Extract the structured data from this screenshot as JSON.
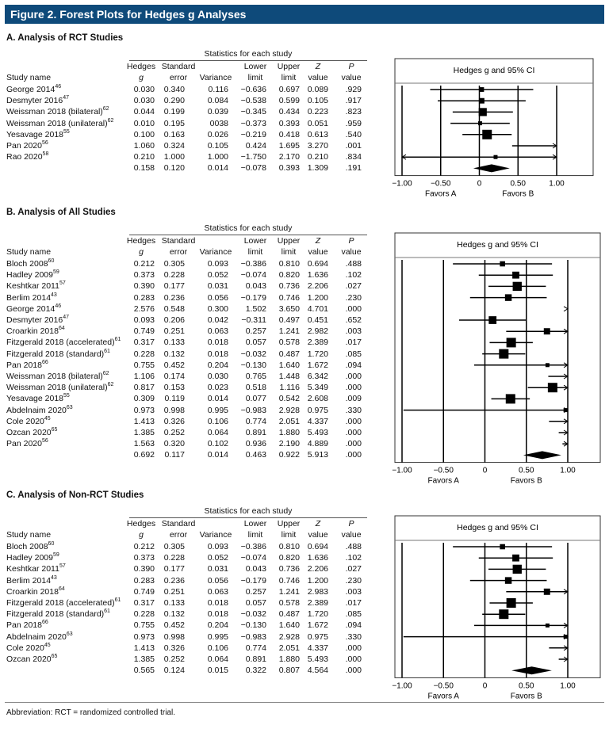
{
  "figure_title": "Figure 2. Forest Plots for Hedges g Analyses",
  "footnote": "Abbreviation: RCT = randomized controlled trial.",
  "columns": {
    "study": "Study name",
    "hedges": [
      "Hedges",
      "g"
    ],
    "se": [
      "Standard",
      "error"
    ],
    "variance": [
      "",
      "Variance"
    ],
    "lower": [
      "Lower",
      "limit"
    ],
    "upper": [
      "Upper",
      "limit"
    ],
    "z": [
      "Z",
      "value"
    ],
    "p": [
      "P",
      "value"
    ]
  },
  "stats_header": "Statistics for each study",
  "plot_title": "Hedges g and 95% CI",
  "axis": {
    "ticks": [
      "−1.00",
      "−0.50",
      "0",
      "0.50",
      "1.00"
    ],
    "tick_values": [
      -1,
      -0.5,
      0,
      0.5,
      1
    ],
    "xlim": [
      -1,
      1
    ],
    "left_label": "Favors A",
    "right_label": "Favors B"
  },
  "chart_data": [
    {
      "type": "forest",
      "title": "A. Analysis of RCT Studies",
      "rows": [
        {
          "study": "George 2014",
          "ref": "46",
          "g": "0.030",
          "se": "0.340",
          "var": "0.116",
          "lo": "−0.636",
          "hi": "0.697",
          "z": "0.089",
          "p": ".929"
        },
        {
          "study": "Desmyter 2016",
          "ref": "47",
          "g": "0.030",
          "se": "0.290",
          "var": "0.084",
          "lo": "−0.538",
          "hi": "0.599",
          "z": "0.105",
          "p": ".917"
        },
        {
          "study": "Weissman 2018 (bilateral)",
          "ref": "62",
          "g": "0.044",
          "se": "0.199",
          "var": "0.039",
          "lo": "−0.345",
          "hi": "0.434",
          "z": "0.223",
          "p": ".823"
        },
        {
          "study": "Weissman 2018 (unilateral)",
          "ref": "62",
          "g": "0.010",
          "se": "0.195",
          "var": "0038",
          "lo": "−0.373",
          "hi": "0.393",
          "z": "0.051",
          "p": ".959"
        },
        {
          "study": "Yesavage 2018",
          "ref": "55",
          "g": "0.100",
          "se": "0.163",
          "var": "0.026",
          "lo": "−0.219",
          "hi": "0.418",
          "z": "0.613",
          "p": ".540"
        },
        {
          "study": "Pan 2020",
          "ref": "56",
          "g": "1.060",
          "se": "0.324",
          "var": "0.105",
          "lo": "0.424",
          "hi": "1.695",
          "z": "3.270",
          "p": ".001"
        },
        {
          "study": "Rao 2020",
          "ref": "58",
          "g": "0.210",
          "se": "1.000",
          "var": "1.000",
          "lo": "−1.750",
          "hi": "2.170",
          "z": "0.210",
          "p": ".834"
        }
      ],
      "summary": {
        "g": "0.158",
        "se": "0.120",
        "var": "0.014",
        "lo": "−0.078",
        "hi": "0.393",
        "z": "1.309",
        "p": ".191"
      }
    },
    {
      "type": "forest",
      "title": "B. Analysis of All Studies",
      "rows": [
        {
          "study": "Bloch 2008",
          "ref": "60",
          "g": "0.212",
          "se": "0.305",
          "var": "0.093",
          "lo": "−0.386",
          "hi": "0.810",
          "z": "0.694",
          "p": ".488"
        },
        {
          "study": "Hadley 2009",
          "ref": "59",
          "g": "0.373",
          "se": "0.228",
          "var": "0.052",
          "lo": "−0.074",
          "hi": "0.820",
          "z": "1.636",
          "p": ".102"
        },
        {
          "study": "Keshtkar 2011",
          "ref": "57",
          "g": "0.390",
          "se": "0.177",
          "var": "0.031",
          "lo": "0.043",
          "hi": "0.736",
          "z": "2.206",
          "p": ".027"
        },
        {
          "study": "Berlim 2014",
          "ref": "43",
          "g": "0.283",
          "se": "0.236",
          "var": "0.056",
          "lo": "−0.179",
          "hi": "0.746",
          "z": "1.200",
          "p": ".230"
        },
        {
          "study": "George 2014",
          "ref": "46",
          "g": "2.576",
          "se": "0.548",
          "var": "0.300",
          "lo": "1.502",
          "hi": "3.650",
          "z": "4.701",
          "p": ".000"
        },
        {
          "study": "Desmyter 2016",
          "ref": "47",
          "g": "0.093",
          "se": "0.206",
          "var": "0.042",
          "lo": "−0.311",
          "hi": "0.497",
          "z": "0.451",
          "p": ".652"
        },
        {
          "study": "Croarkin 2018",
          "ref": "64",
          "g": "0.749",
          "se": "0.251",
          "var": "0.063",
          "lo": "0.257",
          "hi": "1.241",
          "z": "2.982",
          "p": ".003"
        },
        {
          "study": "Fitzgerald 2018 (accelerated)",
          "ref": "61",
          "g": "0.317",
          "se": "0.133",
          "var": "0.018",
          "lo": "0.057",
          "hi": "0.578",
          "z": "2.389",
          "p": ".017"
        },
        {
          "study": "Fitzgerald 2018 (standard)",
          "ref": "61",
          "g": "0.228",
          "se": "0.132",
          "var": "0.018",
          "lo": "−0.032",
          "hi": "0.487",
          "z": "1.720",
          "p": ".085"
        },
        {
          "study": "Pan 2018",
          "ref": "66",
          "g": "0.755",
          "se": "0.452",
          "var": "0.204",
          "lo": "−0.130",
          "hi": "1.640",
          "z": "1.672",
          "p": ".094"
        },
        {
          "study": "Weissman 2018 (bilateral)",
          "ref": "62",
          "g": "1.106",
          "se": "0.174",
          "var": "0.030",
          "lo": "0.765",
          "hi": "1.448",
          "z": "6.342",
          "p": ".000"
        },
        {
          "study": "Weissman 2018 (unilateral)",
          "ref": "62",
          "g": "0.817",
          "se": "0.153",
          "var": "0.023",
          "lo": "0.518",
          "hi": "1.116",
          "z": "5.349",
          "p": ".000"
        },
        {
          "study": "Yesavage 2018",
          "ref": "55",
          "g": "0.309",
          "se": "0.119",
          "var": "0.014",
          "lo": "0.077",
          "hi": "0.542",
          "z": "2.608",
          "p": ".009"
        },
        {
          "study": "Abdelnaim 2020",
          "ref": "63",
          "g": "0.973",
          "se": "0.998",
          "var": "0.995",
          "lo": "−0.983",
          "hi": "2.928",
          "z": "0.975",
          "p": ".330"
        },
        {
          "study": "Cole 2020",
          "ref": "45",
          "g": "1.413",
          "se": "0.326",
          "var": "0.106",
          "lo": "0.774",
          "hi": "2.051",
          "z": "4.337",
          "p": ".000"
        },
        {
          "study": "Ozcan 2020",
          "ref": "65",
          "g": "1.385",
          "se": "0.252",
          "var": "0.064",
          "lo": "0.891",
          "hi": "1.880",
          "z": "5.493",
          "p": ".000"
        },
        {
          "study": "Pan 2020",
          "ref": "56",
          "g": "1.563",
          "se": "0.320",
          "var": "0.102",
          "lo": "0.936",
          "hi": "2.190",
          "z": "4.889",
          "p": ".000"
        }
      ],
      "summary": {
        "g": "0.692",
        "se": "0.117",
        "var": "0.014",
        "lo": "0.463",
        "hi": "0.922",
        "z": "5.913",
        "p": ".000"
      }
    },
    {
      "type": "forest",
      "title": "C. Analysis of Non-RCT Studies",
      "rows": [
        {
          "study": "Bloch 2008",
          "ref": "60",
          "g": "0.212",
          "se": "0.305",
          "var": "0.093",
          "lo": "−0.386",
          "hi": "0.810",
          "z": "0.694",
          "p": ".488"
        },
        {
          "study": "Hadley 2009",
          "ref": "59",
          "g": "0.373",
          "se": "0.228",
          "var": "0.052",
          "lo": "−0.074",
          "hi": "0.820",
          "z": "1.636",
          "p": ".102"
        },
        {
          "study": "Keshtkar 2011",
          "ref": "57",
          "g": "0.390",
          "se": "0.177",
          "var": "0.031",
          "lo": "0.043",
          "hi": "0.736",
          "z": "2.206",
          "p": ".027"
        },
        {
          "study": "Berlim 2014",
          "ref": "43",
          "g": "0.283",
          "se": "0.236",
          "var": "0.056",
          "lo": "−0.179",
          "hi": "0.746",
          "z": "1.200",
          "p": ".230"
        },
        {
          "study": "Croarkin 2018",
          "ref": "64",
          "g": "0.749",
          "se": "0.251",
          "var": "0.063",
          "lo": "0.257",
          "hi": "1.241",
          "z": "2.983",
          "p": ".003"
        },
        {
          "study": "Fitzgerald 2018 (accelerated)",
          "ref": "61",
          "g": "0.317",
          "se": "0.133",
          "var": "0.018",
          "lo": "0.057",
          "hi": "0.578",
          "z": "2.389",
          "p": ".017"
        },
        {
          "study": "Fitzgerald 2018 (standard)",
          "ref": "61",
          "g": "0.228",
          "se": "0.132",
          "var": "0.018",
          "lo": "−0.032",
          "hi": "0.487",
          "z": "1.720",
          "p": ".085"
        },
        {
          "study": "Pan 2018",
          "ref": "66",
          "g": "0.755",
          "se": "0.452",
          "var": "0.204",
          "lo": "−0.130",
          "hi": "1.640",
          "z": "1.672",
          "p": ".094"
        },
        {
          "study": "Abdelnaim 2020",
          "ref": "63",
          "g": "0.973",
          "se": "0.998",
          "var": "0.995",
          "lo": "−0.983",
          "hi": "2.928",
          "z": "0.975",
          "p": ".330"
        },
        {
          "study": "Cole 2020",
          "ref": "45",
          "g": "1.413",
          "se": "0.326",
          "var": "0.106",
          "lo": "0.774",
          "hi": "2.051",
          "z": "4.337",
          "p": ".000"
        },
        {
          "study": "Ozcan 2020",
          "ref": "65",
          "g": "1.385",
          "se": "0.252",
          "var": "0.064",
          "lo": "0.891",
          "hi": "1.880",
          "z": "5.493",
          "p": ".000"
        }
      ],
      "summary": {
        "g": "0.565",
        "se": "0.124",
        "var": "0.015",
        "lo": "0.322",
        "hi": "0.807",
        "z": "4.564",
        "p": ".000"
      }
    }
  ]
}
